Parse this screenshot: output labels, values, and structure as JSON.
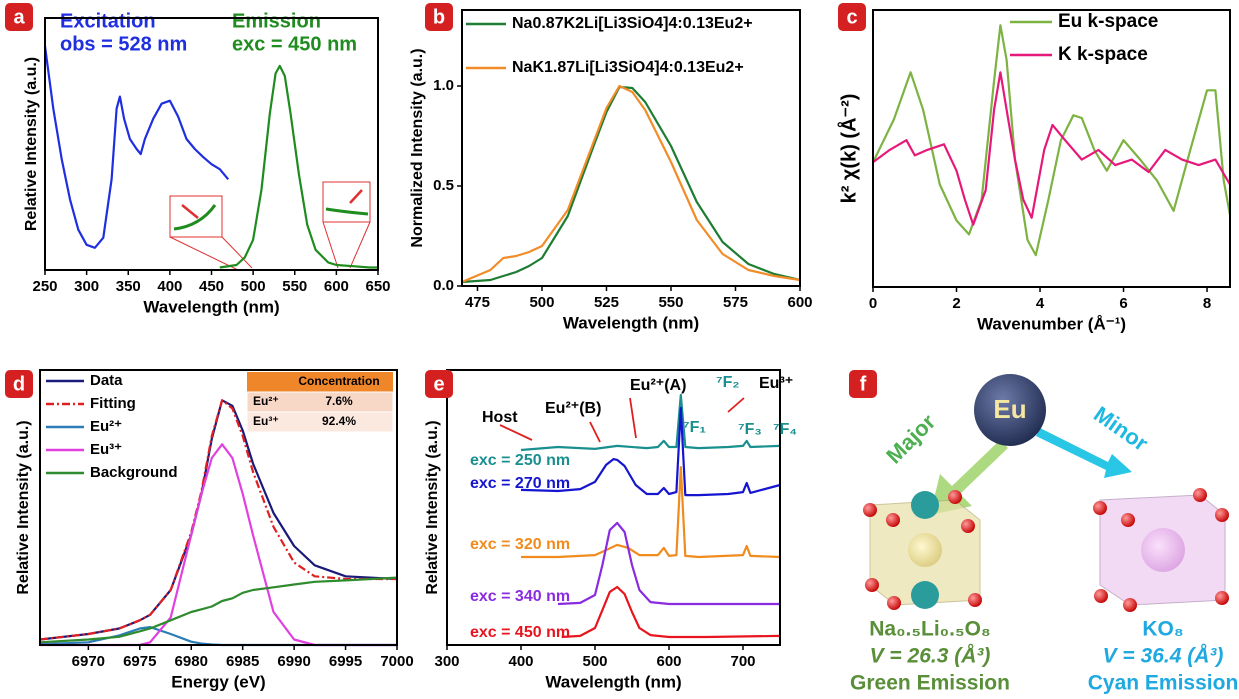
{
  "chart_data": [
    {
      "type": "line",
      "panel_label": "a",
      "xlabel": "Wavelength (nm)",
      "ylabel": "Relative Intensity (a.u.)",
      "xlim": [
        250,
        650
      ],
      "ylim": [
        0,
        1
      ],
      "xticks": [
        250,
        300,
        350,
        400,
        450,
        500,
        550,
        600,
        650
      ],
      "series": [
        {
          "name": "Excitation",
          "color": "#1f2fe0",
          "x": [
            250,
            260,
            270,
            280,
            290,
            300,
            310,
            320,
            330,
            336,
            340,
            345,
            352,
            360,
            365,
            370,
            380,
            390,
            400,
            410,
            420,
            430,
            440,
            450,
            460,
            470
          ],
          "values": [
            0.888,
            0.64,
            0.44,
            0.28,
            0.16,
            0.1,
            0.088,
            0.128,
            0.36,
            0.64,
            0.688,
            0.6,
            0.52,
            0.48,
            0.46,
            0.52,
            0.6,
            0.66,
            0.672,
            0.608,
            0.52,
            0.48,
            0.448,
            0.42,
            0.4,
            0.36
          ]
        },
        {
          "name": "Emission",
          "color": "#1e8c1e",
          "x": [
            460,
            480,
            490,
            500,
            510,
            520,
            527,
            532,
            538,
            545,
            555,
            565,
            575,
            590,
            600,
            620,
            640,
            650
          ],
          "values": [
            0.01,
            0.02,
            0.05,
            0.12,
            0.32,
            0.62,
            0.78,
            0.81,
            0.77,
            0.62,
            0.38,
            0.18,
            0.08,
            0.03,
            0.02,
            0.015,
            0.01,
            0.01
          ]
        }
      ],
      "annotations": [
        {
          "text": "obs = 528 nm",
          "color": "#1f2fe0"
        },
        {
          "text": "exc = 450 nm",
          "color": "#1e8c1e"
        }
      ]
    },
    {
      "type": "line",
      "panel_label": "b",
      "xlabel": "Wavelength (nm)",
      "ylabel": "Normalized Intensity (a.u.)",
      "xlim": [
        469,
        600
      ],
      "ylim": [
        0,
        1.38
      ],
      "xticks": [
        475,
        500,
        525,
        550,
        575,
        600
      ],
      "yticks": [
        {
          "value": 0,
          "label": "0.0"
        },
        0.5,
        {
          "value": 1,
          "label": "1.0"
        }
      ],
      "x": [
        469,
        480,
        485,
        490,
        495,
        500,
        510,
        520,
        525,
        530,
        535,
        540,
        550,
        560,
        570,
        580,
        590,
        600
      ],
      "series": [
        {
          "name": "Na0.87K2Li[Li3SiO4]4:0.13Eu2+",
          "color": "#1e7d32",
          "values": [
            0.02,
            0.03,
            0.05,
            0.07,
            0.1,
            0.14,
            0.35,
            0.7,
            0.87,
            0.995,
            0.99,
            0.92,
            0.7,
            0.42,
            0.22,
            0.11,
            0.06,
            0.03
          ]
        },
        {
          "name": "NaK1.87Li[Li3SiO4]4:0.13Eu2+",
          "color": "#f28c28",
          "values": [
            0.02,
            0.08,
            0.14,
            0.15,
            0.17,
            0.2,
            0.38,
            0.72,
            0.89,
            1.0,
            0.97,
            0.88,
            0.62,
            0.33,
            0.16,
            0.08,
            0.05,
            0.03
          ]
        }
      ]
    },
    {
      "type": "line",
      "panel_label": "c",
      "xlabel": "Wavenumber (Å⁻¹)",
      "ylabel": "k² χ(k) (Å⁻²)",
      "xlim": [
        0,
        8.55
      ],
      "ylim": [
        -1,
        1
      ],
      "xticks": [
        0,
        2,
        4,
        6,
        8
      ],
      "series": [
        {
          "name": "Eu k-space",
          "color": "#7cb342",
          "x": [
            0,
            0.5,
            0.9,
            1.2,
            1.6,
            2.0,
            2.3,
            2.6,
            2.9,
            3.05,
            3.2,
            3.4,
            3.7,
            3.9,
            4.2,
            4.5,
            4.8,
            5.0,
            5.3,
            5.6,
            6.0,
            6.4,
            6.8,
            7.2,
            7.6,
            8.0,
            8.2,
            8.4,
            8.55
          ],
          "values": [
            -0.1,
            0.21,
            0.55,
            0.28,
            -0.26,
            -0.52,
            -0.62,
            -0.37,
            0.49,
            0.89,
            0.64,
            -0.08,
            -0.66,
            -0.77,
            -0.37,
            0.06,
            0.24,
            0.22,
            -0.01,
            -0.16,
            0.06,
            -0.08,
            -0.23,
            -0.45,
            -0.01,
            0.42,
            0.42,
            -0.23,
            -0.48
          ]
        },
        {
          "name": "K k-space",
          "color": "#e6197a",
          "x": [
            0,
            0.4,
            0.8,
            1.0,
            1.3,
            1.7,
            2.0,
            2.2,
            2.4,
            2.7,
            2.9,
            3.05,
            3.2,
            3.4,
            3.6,
            3.8,
            4.1,
            4.3,
            4.6,
            5.0,
            5.4,
            5.8,
            6.2,
            6.6,
            7.0,
            7.4,
            7.8,
            8.2,
            8.55
          ],
          "values": [
            -0.1,
            -0.01,
            0.06,
            -0.05,
            -0.01,
            0.03,
            -0.16,
            -0.37,
            -0.55,
            -0.3,
            0.28,
            0.55,
            0.28,
            -0.08,
            -0.37,
            -0.5,
            -0.01,
            0.17,
            0.06,
            -0.08,
            -0.01,
            -0.12,
            -0.08,
            -0.17,
            -0.01,
            -0.08,
            -0.12,
            -0.08,
            -0.26
          ]
        }
      ]
    },
    {
      "type": "line",
      "panel_label": "d",
      "xlabel": "Energy (eV)",
      "ylabel": "Relative Intensity (a.u.)",
      "xlim": [
        6965.3,
        7000
      ],
      "ylim": [
        0,
        1
      ],
      "xticks": [
        6970,
        6975,
        6980,
        6985,
        6990,
        6995,
        7000
      ],
      "x": [
        6965.3,
        6970,
        6973,
        6975,
        6976,
        6978,
        6980,
        6981,
        6982,
        6983,
        6984,
        6985,
        6986,
        6988,
        6990,
        6992,
        6995,
        7000
      ],
      "series": [
        {
          "name": "Data",
          "color": "#1a1a7a",
          "values": [
            0.02,
            0.04,
            0.06,
            0.09,
            0.11,
            0.2,
            0.4,
            0.55,
            0.75,
            0.89,
            0.87,
            0.78,
            0.66,
            0.48,
            0.36,
            0.29,
            0.25,
            0.24
          ]
        },
        {
          "name": "Fitting",
          "color": "#e02020",
          "line_style": "dashdot",
          "values": [
            0.02,
            0.04,
            0.06,
            0.09,
            0.11,
            0.2,
            0.41,
            0.56,
            0.76,
            0.89,
            0.86,
            0.76,
            0.63,
            0.43,
            0.3,
            0.25,
            0.24,
            0.24
          ]
        },
        {
          "name": "Eu²⁺",
          "color": "#2a7db5",
          "values": [
            0.003,
            0.01,
            0.035,
            0.06,
            0.065,
            0.04,
            0.012,
            0.005,
            0.002,
            0,
            0,
            0,
            0,
            0,
            0,
            0,
            0,
            0
          ]
        },
        {
          "name": "Eu³⁺",
          "color": "#e040e0",
          "values": [
            0,
            0,
            0,
            0,
            0.01,
            0.1,
            0.4,
            0.55,
            0.68,
            0.73,
            0.68,
            0.55,
            0.4,
            0.12,
            0.02,
            0,
            0,
            0
          ]
        },
        {
          "name": "Background",
          "color": "#2e8b2e",
          "values": [
            0.01,
            0.02,
            0.03,
            0.05,
            0.06,
            0.09,
            0.12,
            0.13,
            0.14,
            0.16,
            0.17,
            0.19,
            0.2,
            0.21,
            0.22,
            0.23,
            0.235,
            0.245
          ]
        }
      ],
      "table": {
        "columns": [
          "Concentration"
        ],
        "rows": [
          [
            "Eu²⁺",
            "7.6%"
          ],
          [
            "Eu³⁺",
            "92.4%"
          ]
        ]
      }
    },
    {
      "type": "line",
      "panel_label": "e",
      "xlabel": "Wavelength (nm)",
      "ylabel": "Relative Intensity (a.u.)",
      "xlim": [
        300,
        750
      ],
      "ylim": [
        0,
        1
      ],
      "xticks": [
        300,
        400,
        500,
        600,
        700
      ],
      "series": [
        {
          "name": "exc = 250 nm",
          "color": "#1a8f8f",
          "x": [
            400,
            450,
            500,
            530,
            570,
            585,
            593,
            600,
            610,
            616,
            622,
            640,
            680,
            700,
            705,
            710,
            750
          ],
          "values": [
            0.709,
            0.72,
            0.713,
            0.724,
            0.716,
            0.72,
            0.742,
            0.72,
            0.72,
            0.909,
            0.72,
            0.716,
            0.72,
            0.724,
            0.742,
            0.72,
            0.724
          ]
        },
        {
          "name": "exc = 270 nm",
          "color": "#1515d0",
          "x": [
            400,
            450,
            480,
            500,
            515,
            525,
            530,
            540,
            555,
            570,
            585,
            593,
            600,
            610,
            616,
            622,
            640,
            680,
            700,
            705,
            710,
            750
          ],
          "values": [
            0.564,
            0.56,
            0.567,
            0.593,
            0.655,
            0.676,
            0.673,
            0.651,
            0.582,
            0.549,
            0.549,
            0.571,
            0.549,
            0.556,
            0.862,
            0.545,
            0.545,
            0.549,
            0.556,
            0.589,
            0.553,
            0.582
          ]
        },
        {
          "name": "exc = 320 nm",
          "color": "#f08c1e",
          "x": [
            400,
            450,
            500,
            515,
            530,
            545,
            560,
            585,
            593,
            600,
            610,
            616,
            622,
            640,
            700,
            705,
            710,
            750
          ],
          "values": [
            0.32,
            0.32,
            0.327,
            0.345,
            0.364,
            0.353,
            0.327,
            0.327,
            0.353,
            0.324,
            0.327,
            0.647,
            0.324,
            0.32,
            0.327,
            0.36,
            0.324,
            0.32
          ]
        },
        {
          "name": "exc = 340 nm",
          "color": "#8a2be2",
          "x": [
            450,
            480,
            500,
            510,
            520,
            530,
            540,
            550,
            560,
            575,
            600,
            650,
            750
          ],
          "values": [
            0.149,
            0.153,
            0.182,
            0.291,
            0.418,
            0.444,
            0.411,
            0.291,
            0.2,
            0.156,
            0.149,
            0.149,
            0.149
          ]
        },
        {
          "name": "exc = 450 nm",
          "color": "#e8141e",
          "x": [
            455,
            480,
            500,
            510,
            520,
            530,
            540,
            550,
            560,
            575,
            600,
            650,
            750
          ],
          "values": [
            0.029,
            0.033,
            0.062,
            0.127,
            0.193,
            0.211,
            0.185,
            0.12,
            0.062,
            0.036,
            0.029,
            0.029,
            0.033
          ]
        }
      ],
      "annotations": [
        {
          "text": "Host",
          "color": "#000000"
        },
        {
          "text": "Eu²⁺(B)",
          "color": "#000000"
        },
        {
          "text": "Eu²⁺(A)",
          "color": "#000000"
        },
        {
          "text": "⁷F₂",
          "color": "#1a8f8f"
        },
        {
          "text": "Eu³⁺",
          "color": "#000000"
        },
        {
          "text": "⁷F₁",
          "color": "#1a8f8f"
        },
        {
          "text": "⁷F₃",
          "color": "#1a8f8f"
        },
        {
          "text": "⁷F₄",
          "color": "#1a8f8f"
        }
      ]
    }
  ],
  "diagram": {
    "panel_label": "f",
    "center": "Eu",
    "arrows": [
      "Major",
      "Minor"
    ],
    "sites": [
      {
        "formula": "Na₀.₅Li₀.₅O₈",
        "volume": "V = 26.3 (Å³)",
        "emission": "Green Emission"
      },
      {
        "formula": "KO₈",
        "volume": "V = 36.4 (Å³)",
        "emission": "Cyan Emission"
      }
    ]
  }
}
